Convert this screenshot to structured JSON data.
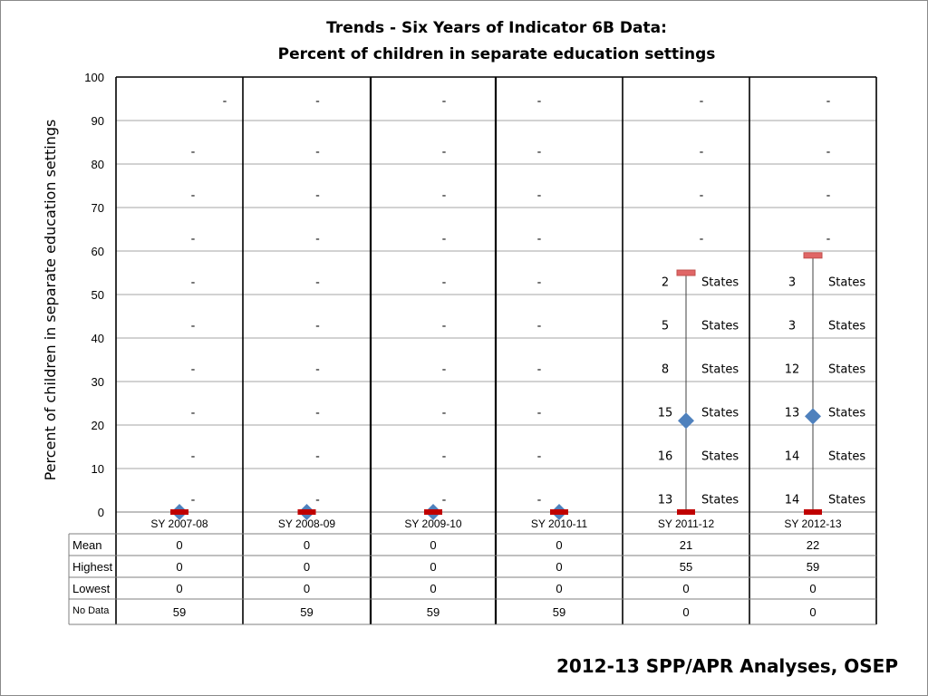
{
  "title_lines": [
    "Trends - Six Years of Indicator 6B Data:",
    "Percent of children in separate education settings"
  ],
  "footer": "2012-13 SPP/APR Analyses, OSEP",
  "chart_data": {
    "type": "stock",
    "title": "Trends - Six Years of Indicator 6B Data: Percent of children in separate education settings",
    "ylabel": "Percent of children in separate education settings",
    "ylim": [
      0,
      100
    ],
    "yticks": [
      0,
      10,
      20,
      30,
      40,
      50,
      60,
      70,
      80,
      90,
      100
    ],
    "grid": true,
    "categories": [
      "SY 2007-08",
      "SY 2008-09",
      "SY 2009-10",
      "SY 2010-11",
      "SY 2011-12",
      "SY 2012-13"
    ],
    "series": [
      {
        "name": "Mean",
        "values": [
          0,
          0,
          0,
          0,
          21,
          22
        ]
      },
      {
        "name": "Highest",
        "values": [
          0,
          0,
          0,
          0,
          55,
          59
        ]
      },
      {
        "name": "Lowest",
        "values": [
          0,
          0,
          0,
          0,
          0,
          0
        ]
      },
      {
        "name": "No Data",
        "values": [
          59,
          59,
          59,
          59,
          0,
          0
        ]
      }
    ],
    "table_rows": [
      {
        "label": "Mean",
        "values": [
          "0",
          "0",
          "0",
          "0",
          "21",
          "22"
        ]
      },
      {
        "label": "Highest",
        "values": [
          "0",
          "0",
          "0",
          "0",
          "55",
          "59"
        ]
      },
      {
        "label": "Lowest",
        "values": [
          "0",
          "0",
          "0",
          "0",
          "0",
          "0"
        ]
      },
      {
        "label": "No Data",
        "values": [
          "59",
          "59",
          "59",
          "59",
          "0",
          "0"
        ]
      }
    ],
    "band_labels": [
      {
        "count": [
          "-",
          "-",
          "-",
          "-",
          "-",
          "-",
          "-",
          "-",
          "-",
          "-"
        ],
        "suffix": [
          "",
          "",
          "",
          "",
          "",
          "",
          "",
          "",
          "",
          ""
        ]
      },
      {
        "count": [
          "-",
          "-",
          "-",
          "-",
          "-",
          "-",
          "-",
          "-",
          "-",
          "-"
        ],
        "suffix": [
          "",
          "",
          "",
          "",
          "",
          "",
          "",
          "",
          "",
          ""
        ]
      },
      {
        "count": [
          "-",
          "-",
          "-",
          "-",
          "-",
          "-",
          "-",
          "-",
          "-",
          "-"
        ],
        "suffix": [
          "",
          "",
          "",
          "",
          "",
          "",
          "",
          "",
          "",
          ""
        ]
      },
      {
        "count": [
          "-",
          "-",
          "-",
          "-",
          "-",
          "-",
          "-",
          "-",
          "-",
          "-"
        ],
        "suffix": [
          "",
          "",
          "",
          "",
          "",
          "",
          "",
          "",
          "",
          ""
        ]
      },
      {
        "count": [
          "13",
          "16",
          "15",
          "8",
          "5",
          "2",
          "-",
          "-",
          "-",
          "-"
        ],
        "suffix": [
          "States",
          "States",
          "States",
          "States",
          "States",
          "States",
          "",
          "",
          "",
          ""
        ]
      },
      {
        "count": [
          "14",
          "14",
          "13",
          "12",
          "3",
          "3",
          "-",
          "-",
          "-",
          "-"
        ],
        "suffix": [
          "States",
          "States",
          "States",
          "States",
          "States",
          "States",
          "",
          "",
          "",
          ""
        ]
      }
    ],
    "colors": {
      "mean_marker": "#4f81bd",
      "high_marker": "#c0504d",
      "low_marker": "#c00000",
      "grid": "#a6a6a6",
      "frame": "#000000"
    }
  }
}
